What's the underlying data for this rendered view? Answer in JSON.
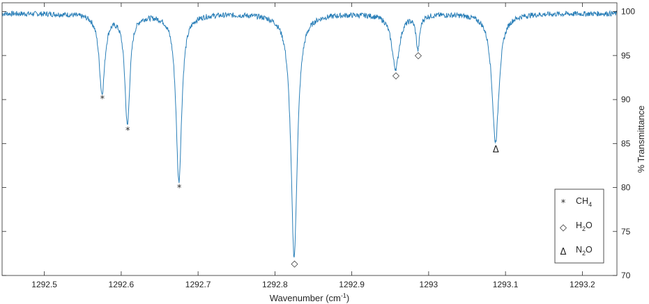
{
  "chart_data": {
    "type": "line",
    "title": "",
    "xlabel": "Wavenumber (cm",
    "xlabel_sup": "-1",
    "xlabel_end": ")",
    "ylabel": "% Transmittance",
    "xlim": [
      1292.445,
      1293.245
    ],
    "ylim": [
      70,
      101
    ],
    "y_axis_side": "right",
    "grid": false,
    "line_color": "#2a7fb8",
    "x_ticks": [
      1292.5,
      1292.6,
      1292.7,
      1292.8,
      1292.9,
      1293.0,
      1293.1,
      1293.2
    ],
    "x_tick_labels": [
      "1292.5",
      "1292.6",
      "1292.7",
      "1292.8",
      "1292.9",
      "1293",
      "1293.1",
      "1293.2"
    ],
    "y_ticks": [
      70,
      75,
      80,
      85,
      90,
      95,
      100
    ],
    "y_tick_labels": [
      "70",
      "75",
      "80",
      "85",
      "90",
      "95",
      "100"
    ],
    "baseline": 99.8,
    "absorption_lines": [
      {
        "center": 1292.575,
        "min": 90.9,
        "width": 0.0045,
        "species": "CH4",
        "symbol": "*"
      },
      {
        "center": 1292.608,
        "min": 87.3,
        "width": 0.004,
        "species": "CH4",
        "symbol": "*"
      },
      {
        "center": 1292.675,
        "min": 80.8,
        "width": 0.0045,
        "species": "CH4",
        "symbol": "*"
      },
      {
        "center": 1292.825,
        "min": 72.2,
        "width": 0.005,
        "species": "H2O",
        "symbol": "◇"
      },
      {
        "center": 1292.957,
        "min": 93.6,
        "width": 0.006,
        "species": "H2O",
        "symbol": "◇"
      },
      {
        "center": 1292.986,
        "min": 95.9,
        "width": 0.0028,
        "species": "H2O",
        "symbol": "◇"
      },
      {
        "center": 1293.087,
        "min": 85.2,
        "width": 0.0055,
        "species": "N2O",
        "symbol": "Δ"
      }
    ],
    "legend": {
      "placement": "lower-right",
      "entries": [
        {
          "symbol": "*",
          "label": "CH",
          "sub": "4",
          "label_end": ""
        },
        {
          "symbol": "◇",
          "label": "H",
          "sub": "2",
          "label_end": "O"
        },
        {
          "symbol": "Δ",
          "label": "N",
          "sub": "2",
          "label_end": "O"
        }
      ]
    }
  }
}
